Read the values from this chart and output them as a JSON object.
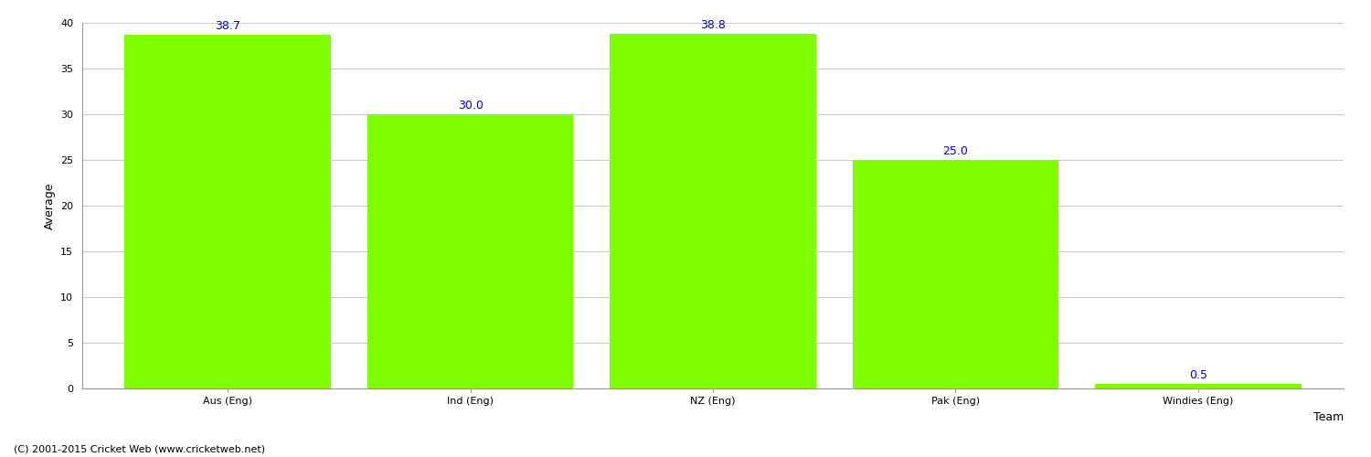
{
  "categories": [
    "Aus (Eng)",
    "Ind (Eng)",
    "NZ (Eng)",
    "Pak (Eng)",
    "Windies (Eng)"
  ],
  "values": [
    38.7,
    30.0,
    38.8,
    25.0,
    0.5
  ],
  "bar_color": "#7fff00",
  "label_color": "#0000cc",
  "xlabel": "Team",
  "ylabel": "Average",
  "ylim": [
    0,
    40
  ],
  "yticks": [
    0,
    5,
    10,
    15,
    20,
    25,
    30,
    35,
    40
  ],
  "background_color": "#ffffff",
  "grid_color": "#cccccc",
  "footer": "(C) 2001-2015 Cricket Web (www.cricketweb.net)",
  "label_fontsize": 9,
  "axis_label_fontsize": 9,
  "tick_fontsize": 8,
  "footer_fontsize": 8,
  "bar_width": 0.85
}
